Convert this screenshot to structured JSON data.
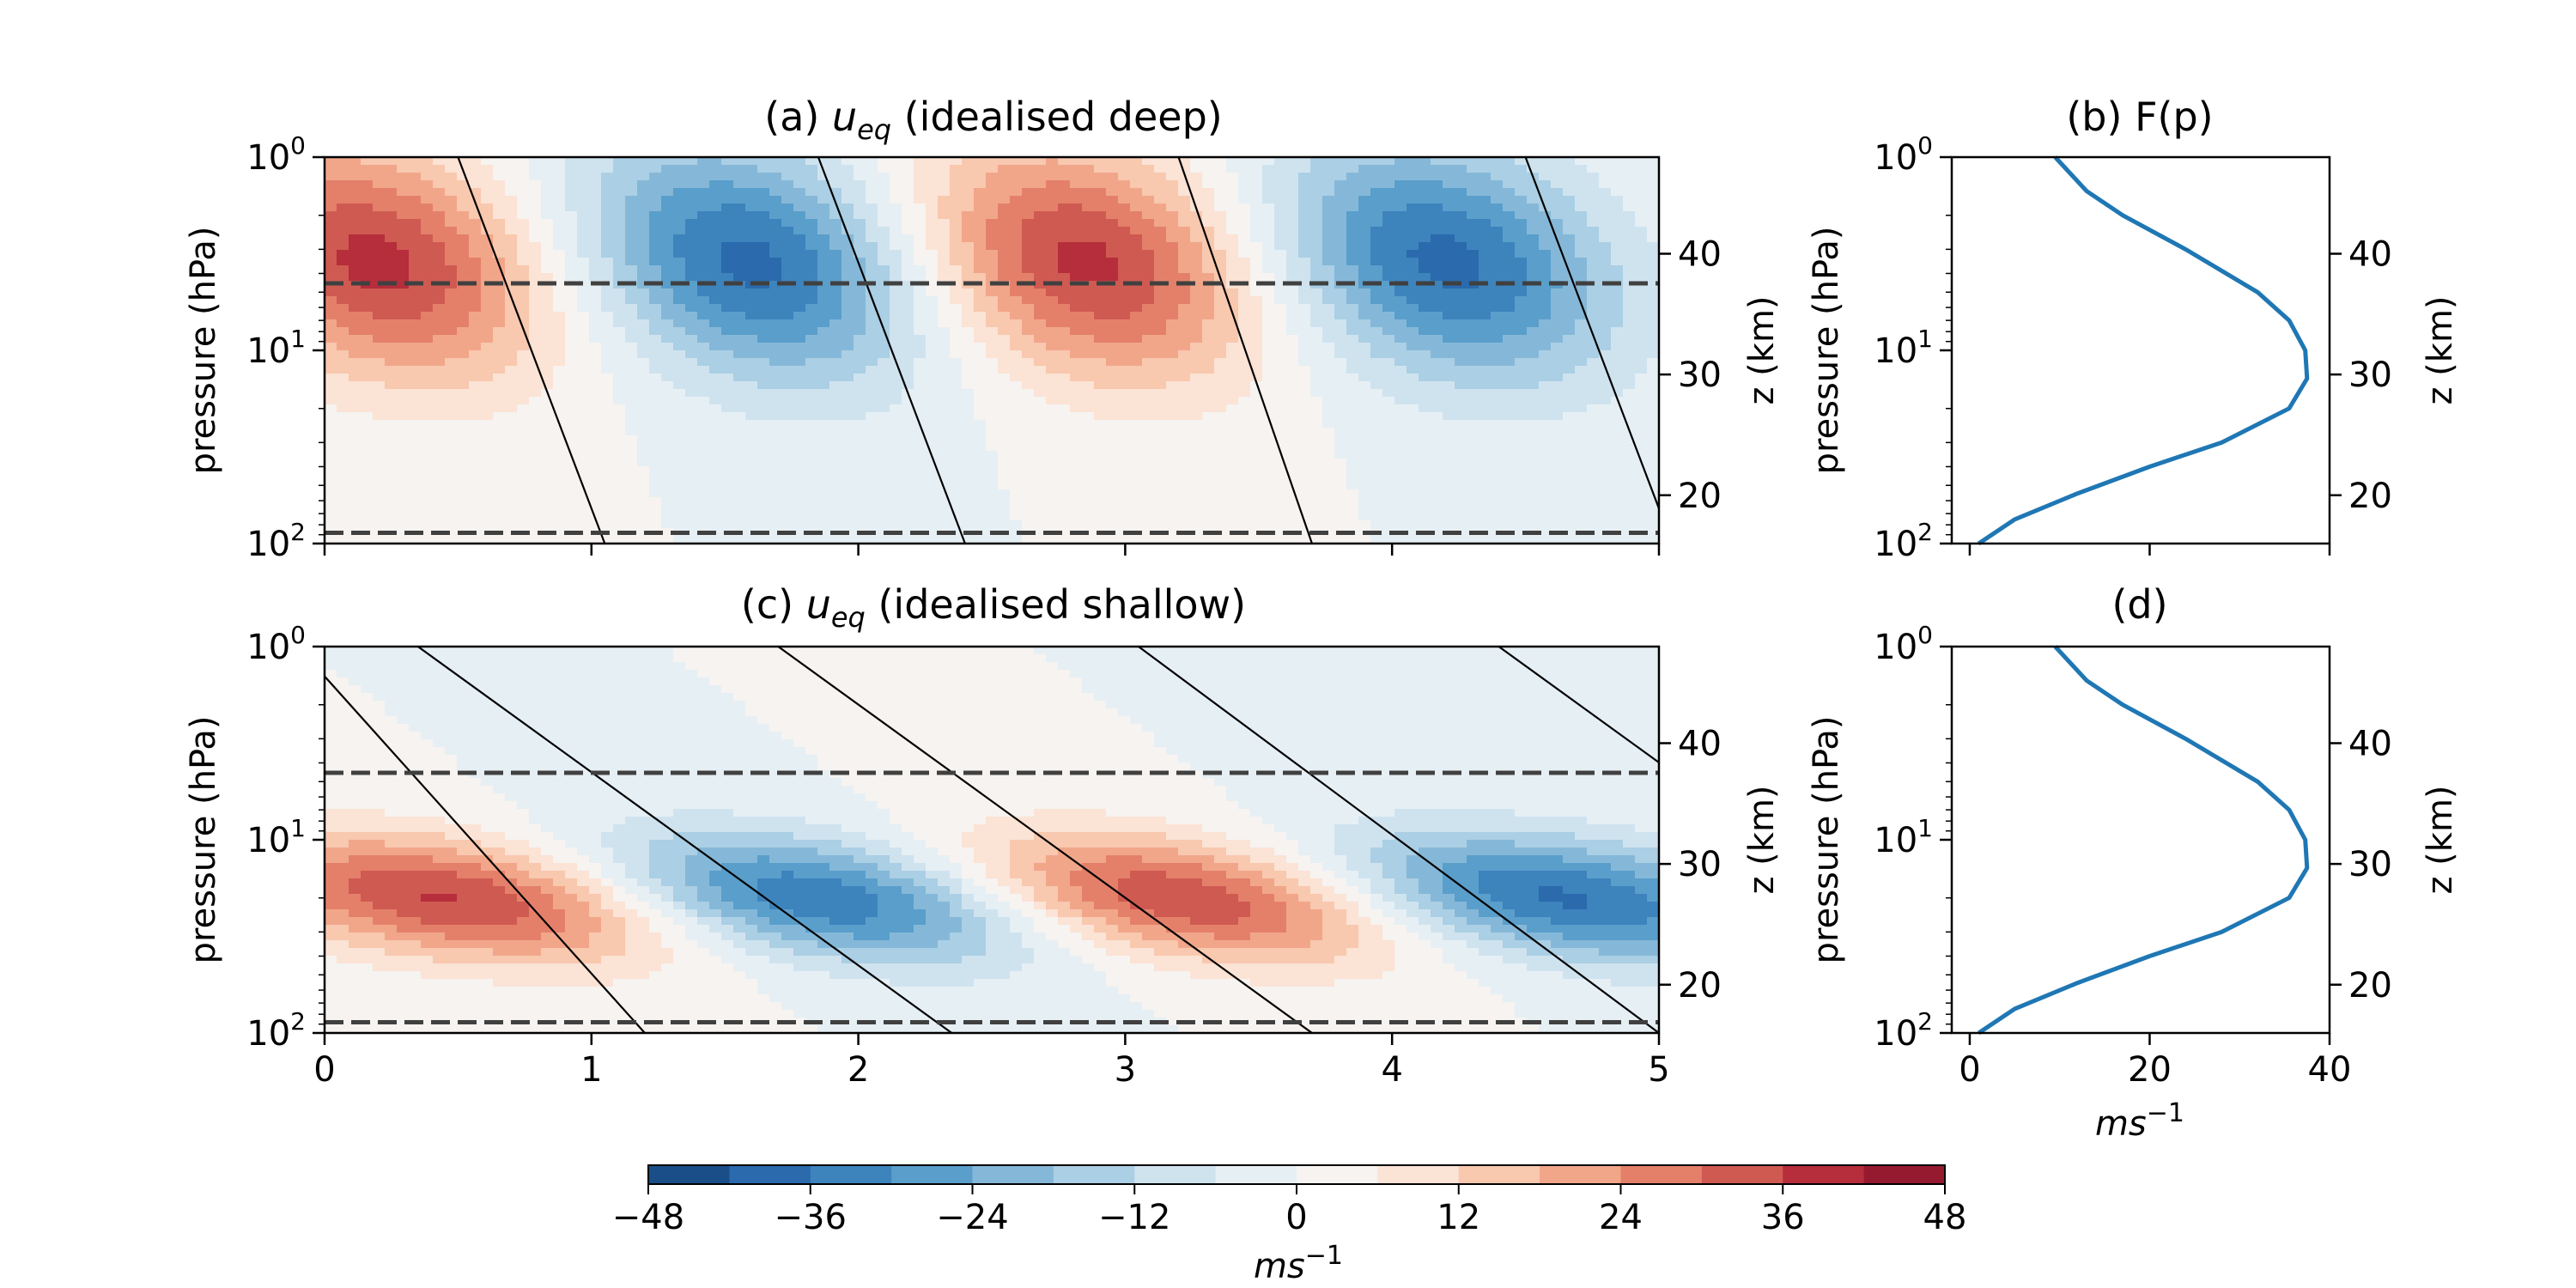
{
  "colors": {
    "cmap": [
      "#053061",
      "#1a4e88",
      "#2a6aad",
      "#3d84bd",
      "#5a9ecb",
      "#85b8d8",
      "#abcfe4",
      "#cfe3ef",
      "#e6eff4",
      "#f6f3f1",
      "#fbe3d5",
      "#f8c8af",
      "#f1a68a",
      "#e4806a",
      "#cf5a52",
      "#b62d3b",
      "#951a30",
      "#67001f"
    ],
    "line": "#1f77b4",
    "dashed": "#404040"
  },
  "panels": {
    "a": {
      "title": "(a) u_eq (idealised deep)",
      "title_pre": "(a) ",
      "title_var": "u",
      "title_sub": "eq",
      "title_post": " (idealised deep)"
    },
    "b": {
      "title": "(b) F(p)"
    },
    "c": {
      "title": "(c) u_eq (idealised shallow)",
      "title_pre": "(c) ",
      "title_var": "u",
      "title_sub": "eq",
      "title_post": " (idealised shallow)"
    },
    "d": {
      "title": "(d)"
    }
  },
  "axes": {
    "ylabel": "pressure (hPa)",
    "ylabel_right": "z (km)",
    "pressure_ticks": [
      {
        "base": "10",
        "exp": "0"
      },
      {
        "base": "10",
        "exp": "1"
      },
      {
        "base": "10",
        "exp": "2"
      }
    ],
    "z_ticks": [
      "20",
      "30",
      "40"
    ],
    "x_ticks_main": [
      "0",
      "1",
      "2",
      "3",
      "4",
      "5"
    ],
    "x_ticks_profile": [
      "0",
      "20",
      "40"
    ],
    "xlabel_profile": "ms",
    "xlabel_profile_exp": "−1"
  },
  "colorbar": {
    "ticks": [
      "−48",
      "−36",
      "−24",
      "−12",
      "0",
      "12",
      "24",
      "36",
      "48"
    ],
    "label": "ms",
    "label_exp": "−1"
  },
  "chart_data": [
    {
      "type": "heatmap",
      "panel": "a",
      "title": "(a) u_eq (idealised deep)",
      "x_range": [
        0,
        5
      ],
      "y_scale": "log",
      "y_range_hPa": [
        100,
        1
      ],
      "z_range_km": [
        16,
        48
      ],
      "z_ticks": [
        20,
        30,
        40
      ],
      "levels": [
        -48,
        -42,
        -36,
        -30,
        -24,
        -18,
        -12,
        -6,
        0,
        6,
        12,
        18,
        24,
        30,
        36,
        42,
        48
      ],
      "amplitude_ms": 38,
      "peak_pressure_hPa": 3.5,
      "peaks": [
        {
          "x": 0.2,
          "sign": "+"
        },
        {
          "x": 1.6,
          "sign": "-"
        },
        {
          "x": 2.85,
          "sign": "+"
        },
        {
          "x": 4.2,
          "sign": "-"
        }
      ],
      "dashed_pressure_hPa": [
        4.5,
        88
      ]
    },
    {
      "type": "line",
      "panel": "b",
      "title": "(b) F(p)",
      "xlim": [
        -2,
        40
      ],
      "y_scale": "log",
      "points": [
        {
          "p": 1,
          "F": 9.5
        },
        {
          "p": 1.5,
          "F": 13
        },
        {
          "p": 2,
          "F": 17
        },
        {
          "p": 3,
          "F": 24
        },
        {
          "p": 5,
          "F": 32
        },
        {
          "p": 7,
          "F": 35.5
        },
        {
          "p": 10,
          "F": 37.3
        },
        {
          "p": 14,
          "F": 37.5
        },
        {
          "p": 20,
          "F": 35.5
        },
        {
          "p": 30,
          "F": 28
        },
        {
          "p": 40,
          "F": 20
        },
        {
          "p": 55,
          "F": 12
        },
        {
          "p": 75,
          "F": 5
        },
        {
          "p": 100,
          "F": 1
        }
      ]
    },
    {
      "type": "heatmap",
      "panel": "c",
      "title": "(c) u_eq (idealised shallow)",
      "x_range": [
        0,
        5
      ],
      "y_scale": "log",
      "y_range_hPa": [
        100,
        1
      ],
      "z_range_km": [
        16,
        48
      ],
      "z_ticks": [
        20,
        30,
        40
      ],
      "levels": [
        -48,
        -42,
        -36,
        -30,
        -24,
        -18,
        -12,
        -6,
        0,
        6,
        12,
        18,
        24,
        30,
        36,
        42,
        48
      ],
      "amplitude_ms": 38,
      "peak_pressure_hPa": 20,
      "peaks": [
        {
          "x": 0.5,
          "sign": "+"
        },
        {
          "x": 1.85,
          "sign": "-"
        },
        {
          "x": 3.2,
          "sign": "+"
        },
        {
          "x": 4.6,
          "sign": "-"
        }
      ],
      "dashed_pressure_hPa": [
        4.5,
        88
      ]
    },
    {
      "type": "line",
      "panel": "d",
      "title": "(d)",
      "xlabel": "ms^-1",
      "xlim": [
        -2,
        40
      ],
      "y_scale": "log",
      "points": [
        {
          "p": 1,
          "F": 9.5
        },
        {
          "p": 1.5,
          "F": 13
        },
        {
          "p": 2,
          "F": 17
        },
        {
          "p": 3,
          "F": 24
        },
        {
          "p": 5,
          "F": 32
        },
        {
          "p": 7,
          "F": 35.5
        },
        {
          "p": 10,
          "F": 37.3
        },
        {
          "p": 14,
          "F": 37.5
        },
        {
          "p": 20,
          "F": 35.5
        },
        {
          "p": 30,
          "F": 28
        },
        {
          "p": 40,
          "F": 20
        },
        {
          "p": 55,
          "F": 12
        },
        {
          "p": 75,
          "F": 5
        },
        {
          "p": 100,
          "F": 1
        }
      ]
    }
  ]
}
